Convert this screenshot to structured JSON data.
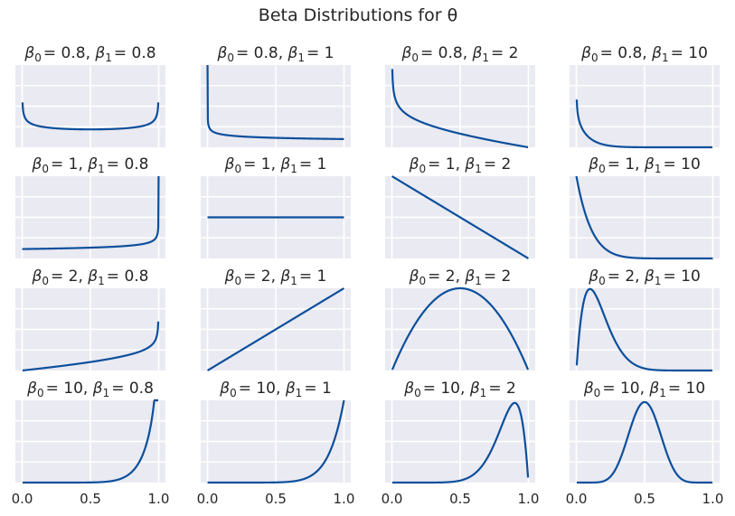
{
  "figure": {
    "title": "Beta Distributions for θ"
  },
  "chart_data": {
    "type": "line",
    "grid": true,
    "rows": 4,
    "cols": 4,
    "x_range": [
      0,
      1
    ],
    "x_ticks": [
      0.0,
      0.5,
      1.0
    ],
    "x_tick_labels": [
      "0.0",
      "0.5",
      "1.0"
    ],
    "line_color": "#0c4f9c",
    "panel_background": "#eaeaf2",
    "panels": [
      {
        "b0": 0.8,
        "b1": 0.8,
        "title": [
          "β",
          "0",
          "= 0.8, ",
          "β",
          "1",
          "= 0.8"
        ],
        "ylim": [
          0,
          4.0
        ]
      },
      {
        "b0": 0.8,
        "b1": 1,
        "title": [
          "β",
          "0",
          "= 0.8, ",
          "β",
          "1",
          "= 1"
        ],
        "ylim": [
          0,
          8.0
        ]
      },
      {
        "b0": 0.8,
        "b1": 2,
        "title": [
          "β",
          "0",
          "= 0.8, ",
          "β",
          "1",
          "= 2"
        ],
        "ylim": [
          0,
          5.0
        ]
      },
      {
        "b0": 0.8,
        "b1": 10,
        "title": [
          "β",
          "0",
          "= 0.8, ",
          "β",
          "1",
          "= 10"
        ],
        "ylim": [
          0,
          30
        ]
      },
      {
        "b0": 1,
        "b1": 0.8,
        "title": [
          "β",
          "0",
          "= 1, ",
          "β",
          "1",
          "= 0.8"
        ],
        "ylim": [
          0,
          7.0
        ]
      },
      {
        "b0": 1,
        "b1": 1,
        "title": [
          "β",
          "0",
          "= 1, ",
          "β",
          "1",
          "= 1"
        ],
        "ylim": [
          0,
          2.0
        ]
      },
      {
        "b0": 1,
        "b1": 2,
        "title": [
          "β",
          "0",
          "= 1, ",
          "β",
          "1",
          "= 2"
        ],
        "ylim": [
          0,
          2.0
        ]
      },
      {
        "b0": 1,
        "b1": 10,
        "title": [
          "β",
          "0",
          "= 1, ",
          "β",
          "1",
          "= 10"
        ],
        "ylim": [
          0,
          10
        ]
      },
      {
        "b0": 2,
        "b1": 0.8,
        "title": [
          "β",
          "0",
          "= 2, ",
          "β",
          "1",
          "= 0.8"
        ],
        "ylim": [
          0,
          8.0
        ]
      },
      {
        "b0": 2,
        "b1": 1,
        "title": [
          "β",
          "0",
          "= 2, ",
          "β",
          "1",
          "= 1"
        ],
        "ylim": [
          0,
          2.0
        ]
      },
      {
        "b0": 2,
        "b1": 2,
        "title": [
          "β",
          "0",
          "= 2, ",
          "β",
          "1",
          "= 2"
        ],
        "ylim": [
          0,
          1.5
        ]
      },
      {
        "b0": 2,
        "b1": 10,
        "title": [
          "β",
          "0",
          "= 2, ",
          "β",
          "1",
          "= 10"
        ],
        "ylim": [
          0,
          4.3
        ]
      },
      {
        "b0": 10,
        "b1": 0.8,
        "title": [
          "β",
          "0",
          "= 10, ",
          "β",
          "1",
          "= 0.8"
        ],
        "ylim": [
          0,
          8.0
        ]
      },
      {
        "b0": 10,
        "b1": 1,
        "title": [
          "β",
          "0",
          "= 10, ",
          "β",
          "1",
          "= 1"
        ],
        "ylim": [
          0,
          10
        ]
      },
      {
        "b0": 10,
        "b1": 2,
        "title": [
          "β",
          "0",
          "= 10, ",
          "β",
          "1",
          "= 2"
        ],
        "ylim": [
          0,
          4.4
        ]
      },
      {
        "b0": 10,
        "b1": 10,
        "title": [
          "β",
          "0",
          "= 10, ",
          "β",
          "1",
          "= 10"
        ],
        "ylim": [
          0,
          3.6
        ]
      }
    ]
  }
}
